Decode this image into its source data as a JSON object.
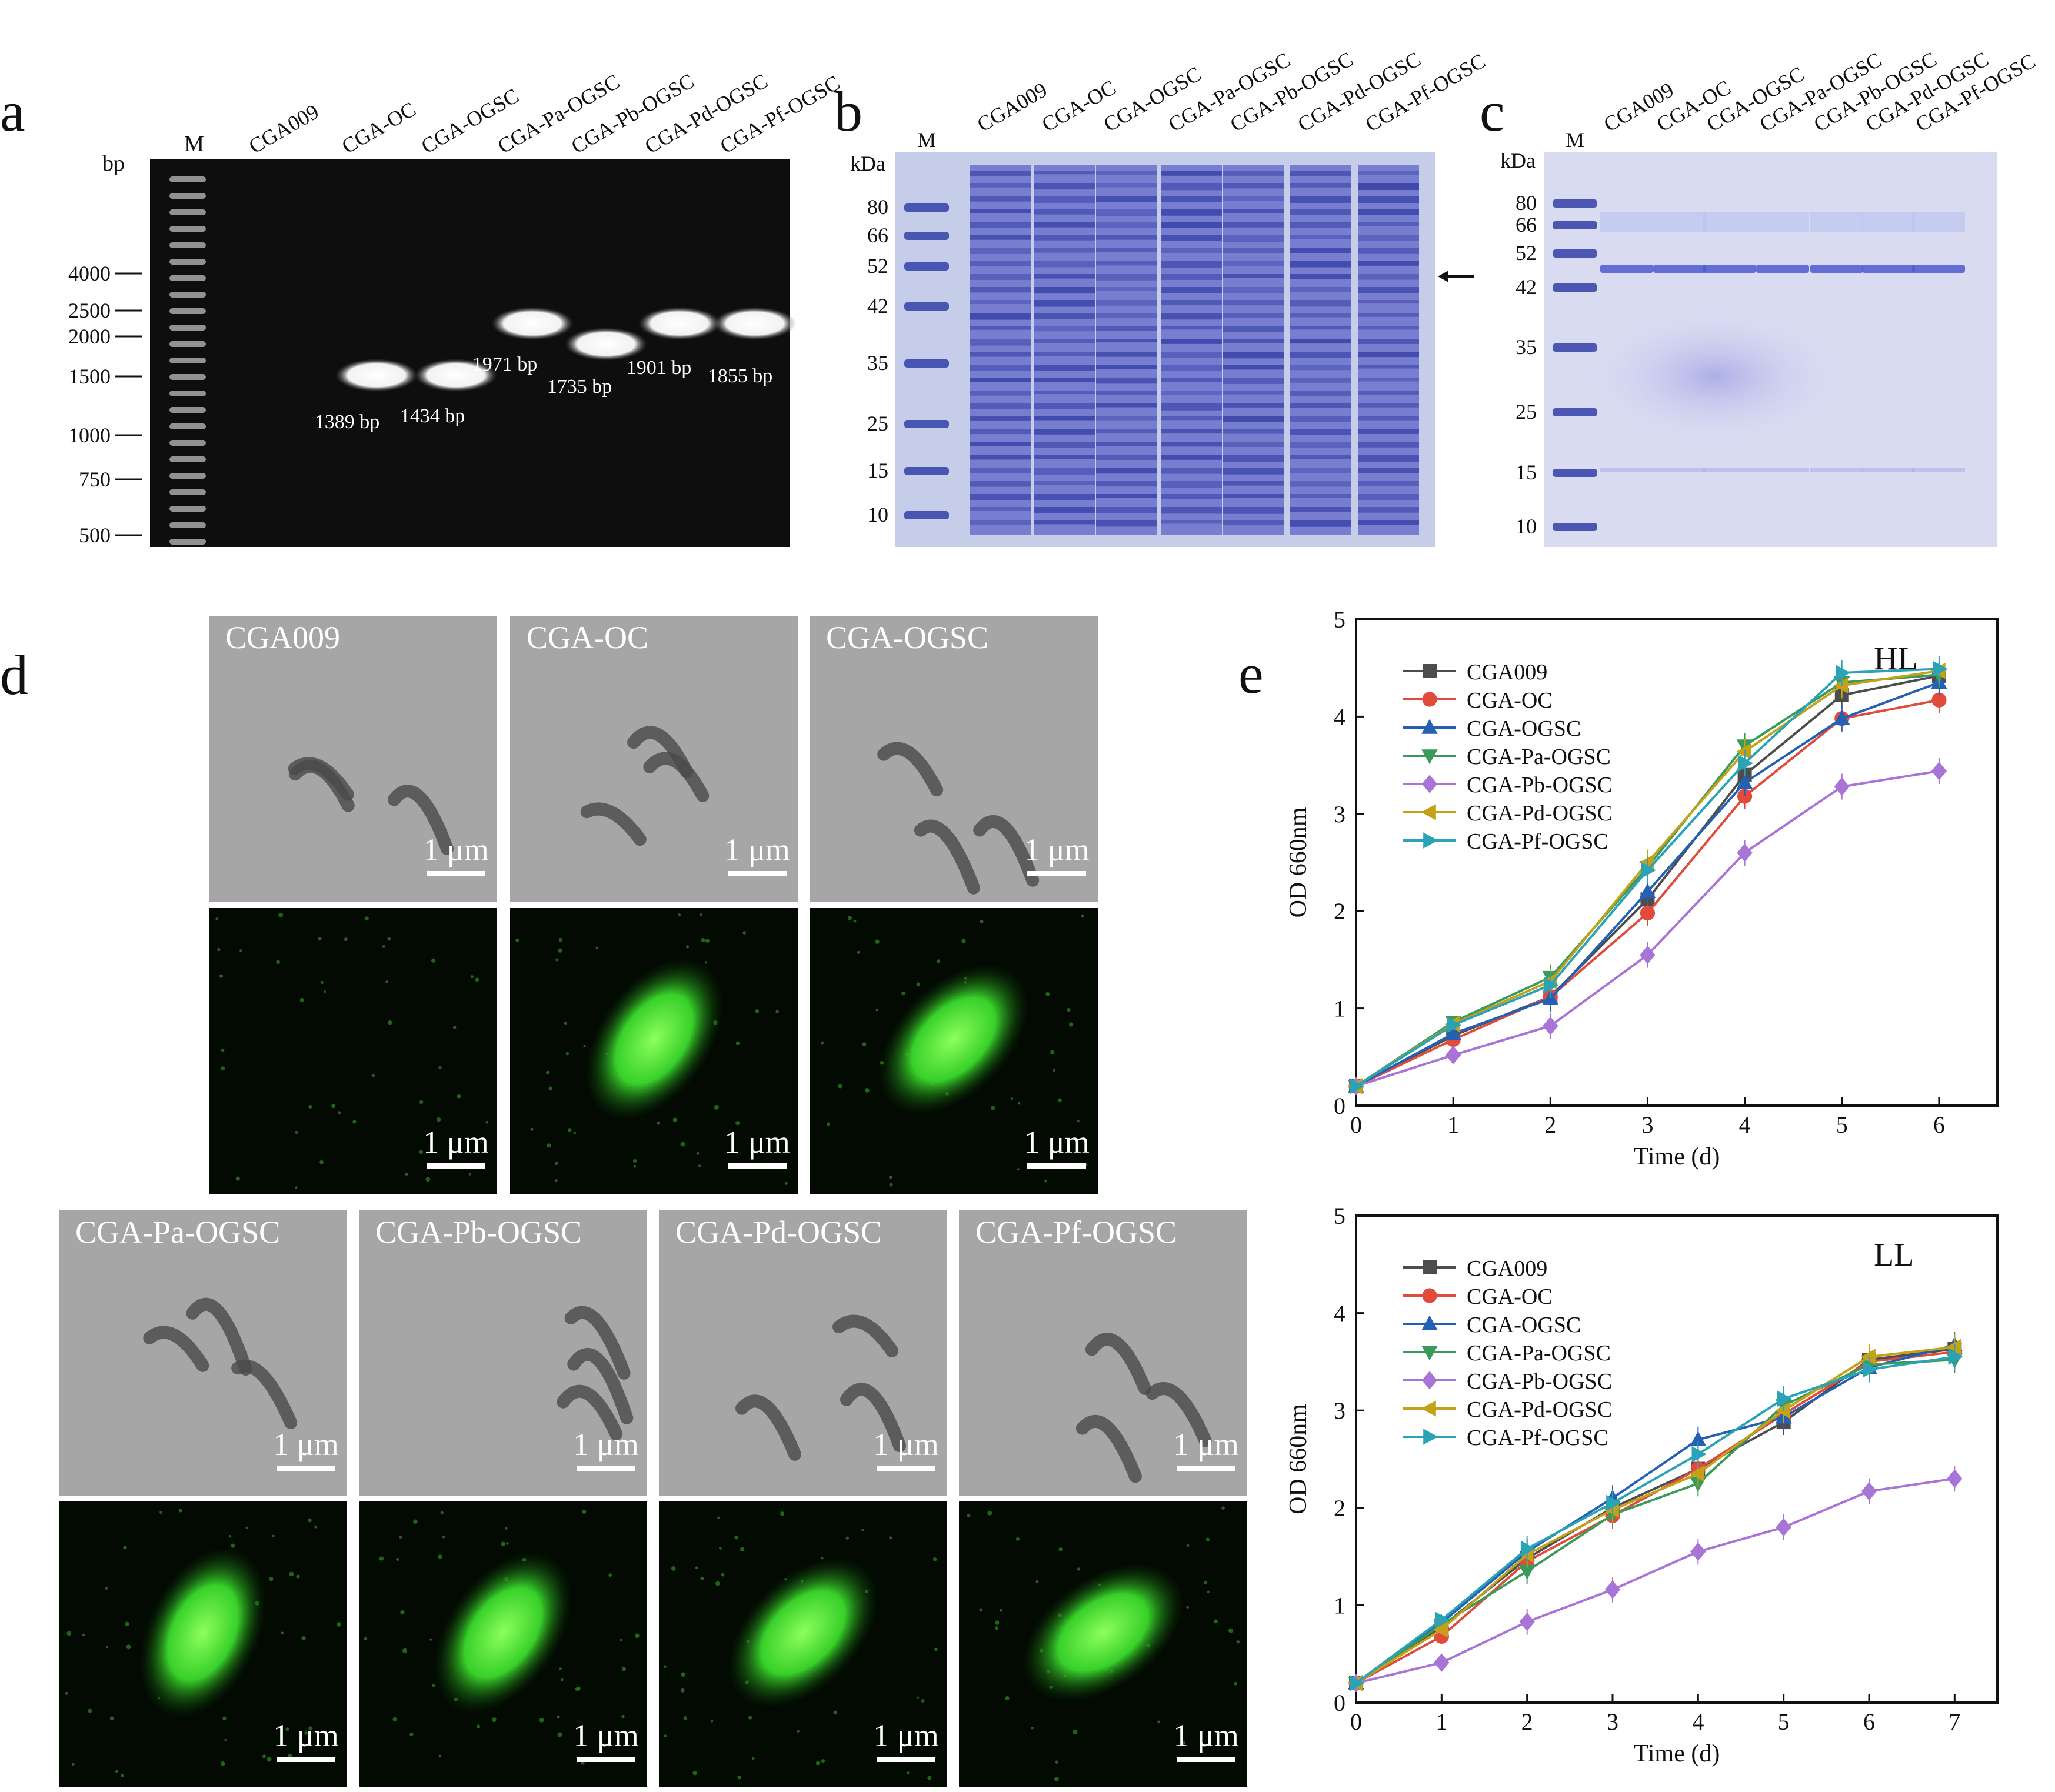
{
  "panel_labels": {
    "a": "a",
    "b": "b",
    "c": "c",
    "d": "d",
    "e": "e"
  },
  "gel_a": {
    "marker_label": "M",
    "unit": "bp",
    "lanes": [
      "CGA009",
      "CGA-OC",
      "CGA-OGSC",
      "CGA-Pa-OGSC",
      "CGA-Pb-OGSC",
      "CGA-Pd-OGSC",
      "CGA-Pf-OGSC"
    ],
    "ladder": [
      "4000",
      "2500",
      "2000",
      "1500",
      "1000",
      "750",
      "500"
    ],
    "band_labels": [
      "1389 bp",
      "1434 bp",
      "1971 bp",
      "1735 bp",
      "1901 bp",
      "1855 bp"
    ]
  },
  "gel_b": {
    "marker_label": "M",
    "unit": "kDa",
    "lanes": [
      "CGA009",
      "CGA-OC",
      "CGA-OGSC",
      "CGA-Pa-OGSC",
      "CGA-Pb-OGSC",
      "CGA-Pd-OGSC",
      "CGA-Pf-OGSC"
    ],
    "ladder": [
      "80",
      "66",
      "52",
      "42",
      "35",
      "25",
      "15",
      "10"
    ]
  },
  "gel_c": {
    "marker_label": "M",
    "unit": "kDa",
    "lanes": [
      "CGA009",
      "CGA-OC",
      "CGA-OGSC",
      "CGA-Pa-OGSC",
      "CGA-Pb-OGSC",
      "CGA-Pd-OGSC",
      "CGA-Pf-OGSC"
    ],
    "ladder": [
      "80",
      "66",
      "52",
      "42",
      "35",
      "25",
      "15",
      "10"
    ]
  },
  "micro": {
    "top_labels": [
      "CGA009",
      "CGA-OC",
      "CGA-OGSC"
    ],
    "bottom_labels": [
      "CGA-Pa-OGSC",
      "CGA-Pb-OGSC",
      "CGA-Pd-OGSC",
      "CGA-Pf-OGSC"
    ],
    "scale_bar": "1 μm"
  },
  "colors": {
    "CGA009": "#4d4d4d",
    "CGA-OC": "#e04b3c",
    "CGA-OGSC": "#2460b4",
    "CGA-Pa-OGSC": "#3a9a5a",
    "CGA-Pb-OGSC": "#a874d6",
    "CGA-Pd-OGSC": "#c3a21a",
    "CGA-Pf-OGSC": "#2aa3b7"
  },
  "chart_data": [
    {
      "type": "line",
      "title": "HL",
      "xlabel": "Time (d)",
      "ylabel": "OD 660nm",
      "xlim": [
        0,
        6.6
      ],
      "ylim": [
        0,
        5
      ],
      "xticks": [
        0,
        1,
        2,
        3,
        4,
        5,
        6
      ],
      "yticks": [
        0,
        1,
        2,
        3,
        4,
        5
      ],
      "legend_position": "top-left",
      "grid": false,
      "x": [
        0,
        1,
        2,
        3,
        4,
        5,
        6
      ],
      "series": [
        {
          "name": "CGA009",
          "marker": "square",
          "values": [
            0.2,
            0.72,
            1.12,
            2.12,
            3.4,
            4.22,
            4.42
          ]
        },
        {
          "name": "CGA-OC",
          "marker": "circle",
          "values": [
            0.2,
            0.68,
            1.12,
            1.98,
            3.18,
            3.98,
            4.17
          ]
        },
        {
          "name": "CGA-OGSC",
          "marker": "triangle-up",
          "values": [
            0.2,
            0.74,
            1.1,
            2.2,
            3.32,
            3.98,
            4.35
          ]
        },
        {
          "name": "CGA-Pa-OGSC",
          "marker": "triangle-down",
          "values": [
            0.2,
            0.86,
            1.32,
            2.45,
            3.7,
            4.35,
            4.43
          ]
        },
        {
          "name": "CGA-Pb-OGSC",
          "marker": "diamond",
          "values": [
            0.2,
            0.52,
            0.82,
            1.55,
            2.6,
            3.28,
            3.44
          ]
        },
        {
          "name": "CGA-Pd-OGSC",
          "marker": "triangle-left",
          "values": [
            0.2,
            0.84,
            1.28,
            2.5,
            3.64,
            4.32,
            4.47
          ]
        },
        {
          "name": "CGA-Pf-OGSC",
          "marker": "triangle-right",
          "values": [
            0.2,
            0.83,
            1.24,
            2.42,
            3.52,
            4.45,
            4.49
          ]
        }
      ]
    },
    {
      "type": "line",
      "title": "LL",
      "xlabel": "Time (d)",
      "ylabel": "OD 660nm",
      "xlim": [
        0,
        7.5
      ],
      "ylim": [
        0,
        5
      ],
      "xticks": [
        0,
        1,
        2,
        3,
        4,
        5,
        6,
        7
      ],
      "yticks": [
        0,
        1,
        2,
        3,
        4,
        5
      ],
      "legend_position": "top-left",
      "grid": false,
      "x": [
        0,
        1,
        2,
        3,
        4,
        5,
        6,
        7
      ],
      "series": [
        {
          "name": "CGA009",
          "marker": "square",
          "values": [
            0.2,
            0.78,
            1.48,
            2.0,
            2.4,
            2.88,
            3.52,
            3.63
          ]
        },
        {
          "name": "CGA-OC",
          "marker": "circle",
          "values": [
            0.2,
            0.68,
            1.45,
            1.92,
            2.4,
            2.96,
            3.5,
            3.6
          ]
        },
        {
          "name": "CGA-OGSC",
          "marker": "triangle-up",
          "values": [
            0.2,
            0.82,
            1.55,
            2.1,
            2.7,
            2.93,
            3.44,
            3.67
          ]
        },
        {
          "name": "CGA-Pa-OGSC",
          "marker": "triangle-down",
          "values": [
            0.2,
            0.8,
            1.35,
            1.93,
            2.25,
            3.05,
            3.47,
            3.52
          ]
        },
        {
          "name": "CGA-Pb-OGSC",
          "marker": "diamond",
          "values": [
            0.2,
            0.41,
            0.83,
            1.16,
            1.55,
            1.8,
            2.17,
            2.3
          ]
        },
        {
          "name": "CGA-Pd-OGSC",
          "marker": "triangle-left",
          "values": [
            0.2,
            0.75,
            1.52,
            1.98,
            2.35,
            3.0,
            3.55,
            3.65
          ]
        },
        {
          "name": "CGA-Pf-OGSC",
          "marker": "triangle-right",
          "values": [
            0.2,
            0.85,
            1.58,
            2.05,
            2.55,
            3.12,
            3.42,
            3.55
          ]
        }
      ]
    }
  ]
}
